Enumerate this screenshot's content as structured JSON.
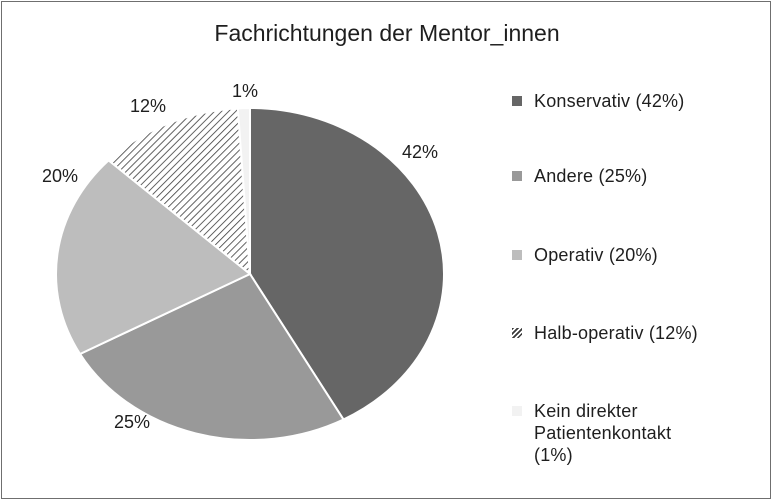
{
  "chart_data": {
    "type": "pie",
    "title": "Fachrichtungen der Mentor_innen",
    "legend_position": "right",
    "slices": [
      {
        "label": "Konservativ (42%)",
        "label_lines": [
          "Konservativ (42%)"
        ],
        "value": 42,
        "data_label": "42%",
        "color": "#666666",
        "pattern": "solid"
      },
      {
        "label": "Andere (25%)",
        "label_lines": [
          "Andere (25%)"
        ],
        "value": 25,
        "data_label": "25%",
        "color": "#999999",
        "pattern": "solid"
      },
      {
        "label": "Operativ (20%)",
        "label_lines": [
          "Operativ (20%)"
        ],
        "value": 20,
        "data_label": "20%",
        "color": "#bdbdbd",
        "pattern": "solid"
      },
      {
        "label": "Halb-operativ (12%)",
        "label_lines": [
          "Halb-operativ (12%)"
        ],
        "value": 12,
        "data_label": "12%",
        "color": "#ffffff",
        "pattern": "diagonal-hatch"
      },
      {
        "label": "Kein direkter Patientenkontakt (1%)",
        "label_lines": [
          "Kein direkter",
          "Patientenkontakt",
          "(1%)"
        ],
        "value": 1,
        "data_label": "1%",
        "color": "#f2f2f2",
        "pattern": "solid"
      }
    ]
  }
}
